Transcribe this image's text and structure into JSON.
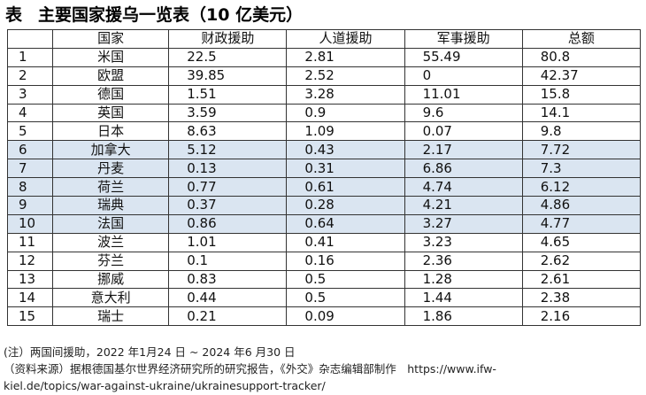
{
  "title": {
    "label": "表",
    "text": "主要国家援乌一览表（10 亿美元）"
  },
  "table": {
    "headers": [
      "",
      "国家",
      "财政援助",
      "人道援助",
      "军事援助",
      "总额"
    ],
    "highlight_color": "#dae5f1",
    "rows": [
      {
        "idx": "1",
        "country": "米国",
        "financial": "22.5",
        "humanitarian": "2.81",
        "military": "55.49",
        "total": "80.8",
        "highlight": false
      },
      {
        "idx": "2",
        "country": "欧盟",
        "financial": "39.85",
        "humanitarian": "2.52",
        "military": "0",
        "total": "42.37",
        "highlight": false
      },
      {
        "idx": "3",
        "country": "德国",
        "financial": "1.51",
        "humanitarian": "3.28",
        "military": "11.01",
        "total": "15.8",
        "highlight": false
      },
      {
        "idx": "4",
        "country": "英国",
        "financial": "3.59",
        "humanitarian": "0.9",
        "military": "9.6",
        "total": "14.1",
        "highlight": false
      },
      {
        "idx": "5",
        "country": "日本",
        "financial": "8.63",
        "humanitarian": "1.09",
        "military": "0.07",
        "total": "9.8",
        "highlight": false
      },
      {
        "idx": "6",
        "country": "加拿大",
        "financial": "5.12",
        "humanitarian": "0.43",
        "military": "2.17",
        "total": "7.72",
        "highlight": true
      },
      {
        "idx": "7",
        "country": "丹麦",
        "financial": "0.13",
        "humanitarian": "0.31",
        "military": "6.86",
        "total": "7.3",
        "highlight": true
      },
      {
        "idx": "8",
        "country": "荷兰",
        "financial": "0.77",
        "humanitarian": "0.61",
        "military": "4.74",
        "total": "6.12",
        "highlight": true
      },
      {
        "idx": "9",
        "country": "瑞典",
        "financial": "0.37",
        "humanitarian": "0.28",
        "military": "4.21",
        "total": "4.86",
        "highlight": true
      },
      {
        "idx": "10",
        "country": "法国",
        "financial": "0.86",
        "humanitarian": "0.64",
        "military": "3.27",
        "total": "4.77",
        "highlight": true
      },
      {
        "idx": "11",
        "country": "波兰",
        "financial": "1.01",
        "humanitarian": "0.41",
        "military": "3.23",
        "total": "4.65",
        "highlight": false
      },
      {
        "idx": "12",
        "country": "芬兰",
        "financial": "0.1",
        "humanitarian": "0.16",
        "military": "2.36",
        "total": "2.62",
        "highlight": false
      },
      {
        "idx": "13",
        "country": "挪威",
        "financial": "0.83",
        "humanitarian": "0.5",
        "military": "1.28",
        "total": "2.61",
        "highlight": false
      },
      {
        "idx": "14",
        "country": "意大利",
        "financial": "0.44",
        "humanitarian": "0.5",
        "military": "1.44",
        "total": "2.38",
        "highlight": false
      },
      {
        "idx": "15",
        "country": "瑞士",
        "financial": "0.21",
        "humanitarian": "0.09",
        "military": "1.86",
        "total": "2.16",
        "highlight": false
      }
    ]
  },
  "notes": {
    "note": "(注）两国间援助，2022 年1月24 日 ~ 2024 年6 月30 日",
    "source_line1": "（资料来源）据根德国基尔世界经济研究所的研究报告，《外交》杂志编辑部制作　https://www.ifw-",
    "source_line2": "kiel.de/topics/war-against-ukraine/ukrainesupport-tracker/"
  }
}
